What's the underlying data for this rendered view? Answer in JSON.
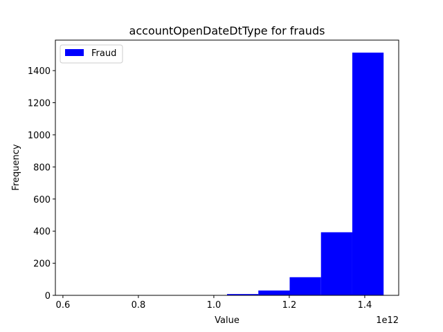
{
  "chart_data": {
    "type": "bar",
    "title": "accountOpenDateDtType for frauds",
    "xlabel": "Value",
    "ylabel": "Frequency",
    "x_offset_label": "1e12",
    "xlim": [
      0.58,
      1.49
    ],
    "ylim": [
      0,
      1590
    ],
    "x_ticks": [
      0.6,
      0.8,
      1.0,
      1.2,
      1.4
    ],
    "x_tick_labels": [
      "0.6",
      "0.8",
      "1.0",
      "1.2",
      "1.4"
    ],
    "y_ticks": [
      0,
      200,
      400,
      600,
      800,
      1000,
      1200,
      1400
    ],
    "y_tick_labels": [
      "0",
      "200",
      "400",
      "600",
      "800",
      "1000",
      "1200",
      "1400"
    ],
    "bins": [
      {
        "x0": 0.62,
        "x1": 0.703,
        "count": 0
      },
      {
        "x0": 0.703,
        "x1": 0.786,
        "count": 0
      },
      {
        "x0": 0.786,
        "x1": 0.869,
        "count": 0
      },
      {
        "x0": 0.869,
        "x1": 0.952,
        "count": 0
      },
      {
        "x0": 0.952,
        "x1": 1.035,
        "count": 0
      },
      {
        "x0": 1.035,
        "x1": 1.118,
        "count": 8
      },
      {
        "x0": 1.118,
        "x1": 1.201,
        "count": 30
      },
      {
        "x0": 1.201,
        "x1": 1.284,
        "count": 113
      },
      {
        "x0": 1.284,
        "x1": 1.367,
        "count": 393
      },
      {
        "x0": 1.367,
        "x1": 1.45,
        "count": 1512
      }
    ],
    "series": [
      {
        "name": "Fraud",
        "color": "#0000ff"
      }
    ],
    "legend_position": "top-left",
    "grid": false
  }
}
